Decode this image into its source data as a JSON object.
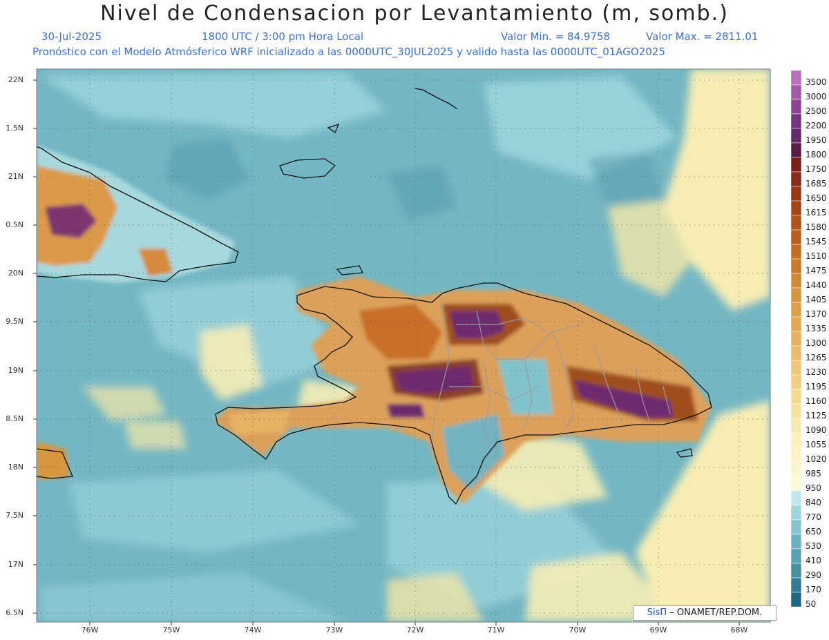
{
  "header": {
    "title": "Nivel de Condensacion por Levantamiento (m, somb.)",
    "date": "30-Jul-2025",
    "time": "1800 UTC / 3:00 pm Hora Local",
    "vmin": "Valor Min. = 84.9758",
    "vmax": "Valor Max. = 2811.01",
    "model_note": "Pronóstico con el Modelo Atmósferico WRF inicializado a las 0000UTC_30JUL2025 y valido hasta las  0000UTC_01AGO2025"
  },
  "axes": {
    "lat_labels": [
      "22N",
      "1.5N",
      "21N",
      "0.5N",
      "20N",
      "9.5N",
      "19N",
      "8.5N",
      "18N",
      "7.5N",
      "17N",
      "6.5N"
    ],
    "lon_labels": [
      "76W",
      "75W",
      "74W",
      "73W",
      "72W",
      "71W",
      "70W",
      "69W",
      "68W"
    ]
  },
  "colorbar": {
    "labels": [
      "3500",
      "3000",
      "2500",
      "2200",
      "1950",
      "1800",
      "1750",
      "1685",
      "1650",
      "1615",
      "1580",
      "1545",
      "1510",
      "1475",
      "1440",
      "1405",
      "1370",
      "1335",
      "1300",
      "1265",
      "1230",
      "1195",
      "1160",
      "1125",
      "1090",
      "1055",
      "1020",
      "985",
      "950",
      "840",
      "770",
      "650",
      "530",
      "410",
      "290",
      "170",
      "50"
    ],
    "colors": [
      "#b86fbc",
      "#a35aa9",
      "#8c4593",
      "#76337e",
      "#652a6c",
      "#5a1d46",
      "#7a1f1a",
      "#8b2a16",
      "#9a3714",
      "#a84414",
      "#b45216",
      "#bd5f1c",
      "#c56d22",
      "#cc7a2a",
      "#d38832",
      "#d9953c",
      "#de9f46",
      "#e3a951",
      "#e7b35c",
      "#ebbd68",
      "#eec775",
      "#f1d083",
      "#f4d991",
      "#f6e29f",
      "#f8eaad",
      "#faf0b8",
      "#fbf4c2",
      "#fcf7cb",
      "#fdf9d4",
      "#bfe6e8",
      "#9ed6dd",
      "#84c5d0",
      "#6cb4c2",
      "#58a2b3",
      "#458fa3",
      "#337d93",
      "#216a83"
    ]
  },
  "credit": {
    "sis": "SisΠ",
    "text": "– ONAMET/REP.DOM."
  },
  "palette": {
    "ocean": "#72b5c2",
    "ocean_light": "#a3dbe1",
    "sand": "#f8eeb5",
    "orange": "#d68a3a",
    "brown": "#9b4a1c",
    "purple": "#6e2a6e"
  }
}
